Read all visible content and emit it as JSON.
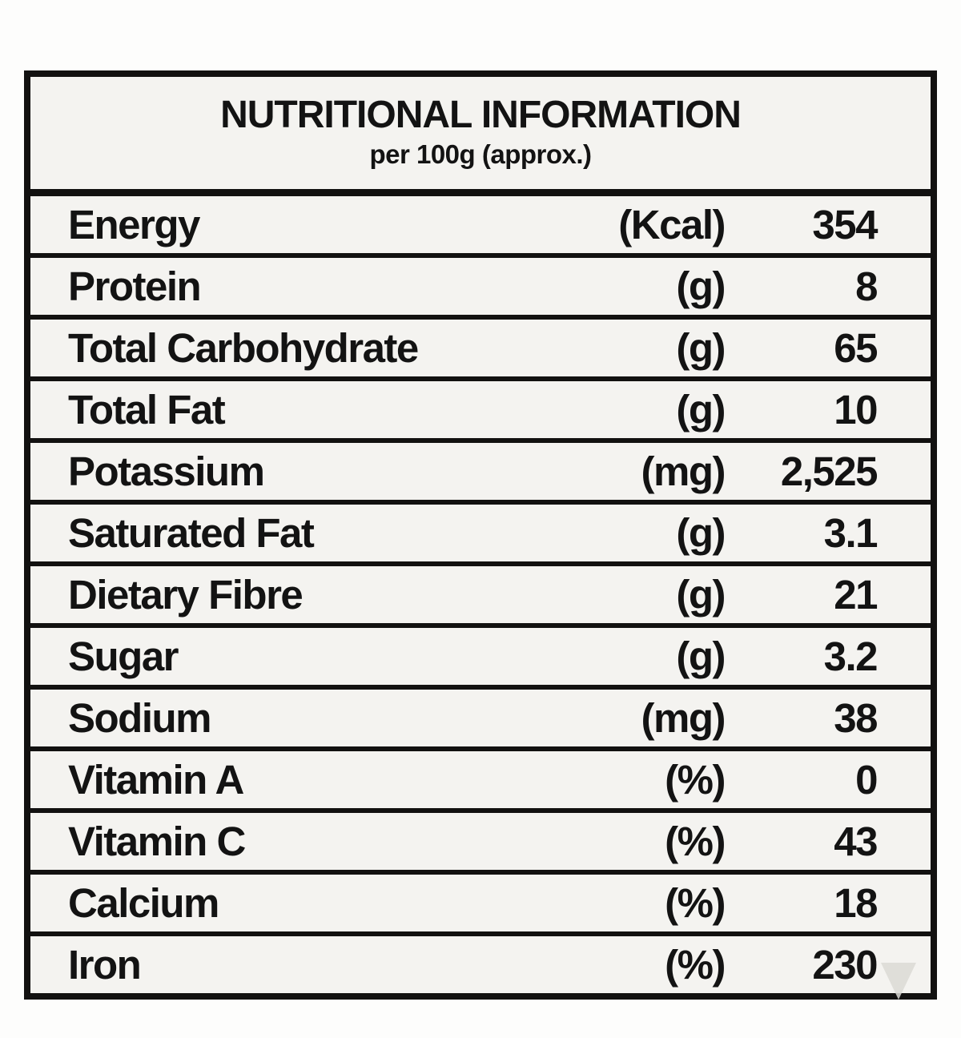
{
  "table": {
    "title": "NUTRITIONAL INFORMATION",
    "subtitle": "per 100g (approx.)",
    "rows": [
      {
        "label": "Energy",
        "unit": "(Kcal)",
        "value": "354"
      },
      {
        "label": "Protein",
        "unit": "(g)",
        "value": "8"
      },
      {
        "label": "Total Carbohydrate",
        "unit": "(g)",
        "value": "65"
      },
      {
        "label": "Total Fat",
        "unit": "(g)",
        "value": "10"
      },
      {
        "label": "Potassium",
        "unit": "(mg)",
        "value": "2,525"
      },
      {
        "label": "Saturated Fat",
        "unit": "(g)",
        "value": "3.1"
      },
      {
        "label": "Dietary Fibre",
        "unit": "(g)",
        "value": "21"
      },
      {
        "label": "Sugar",
        "unit": "(g)",
        "value": "3.2"
      },
      {
        "label": "Sodium",
        "unit": "(mg)",
        "value": "38"
      },
      {
        "label": "Vitamin A",
        "unit": "(%)",
        "value": "0"
      },
      {
        "label": "Vitamin C",
        "unit": "(%)",
        "value": "43"
      },
      {
        "label": "Calcium",
        "unit": "(%)",
        "value": "18"
      },
      {
        "label": "Iron",
        "unit": "(%)",
        "value": "230"
      }
    ],
    "colors": {
      "border": "#121110",
      "table_background": "#f4f3f0",
      "page_background": "#fdfdfc",
      "text": "#131313",
      "watermark": "#dbd9d5"
    }
  }
}
